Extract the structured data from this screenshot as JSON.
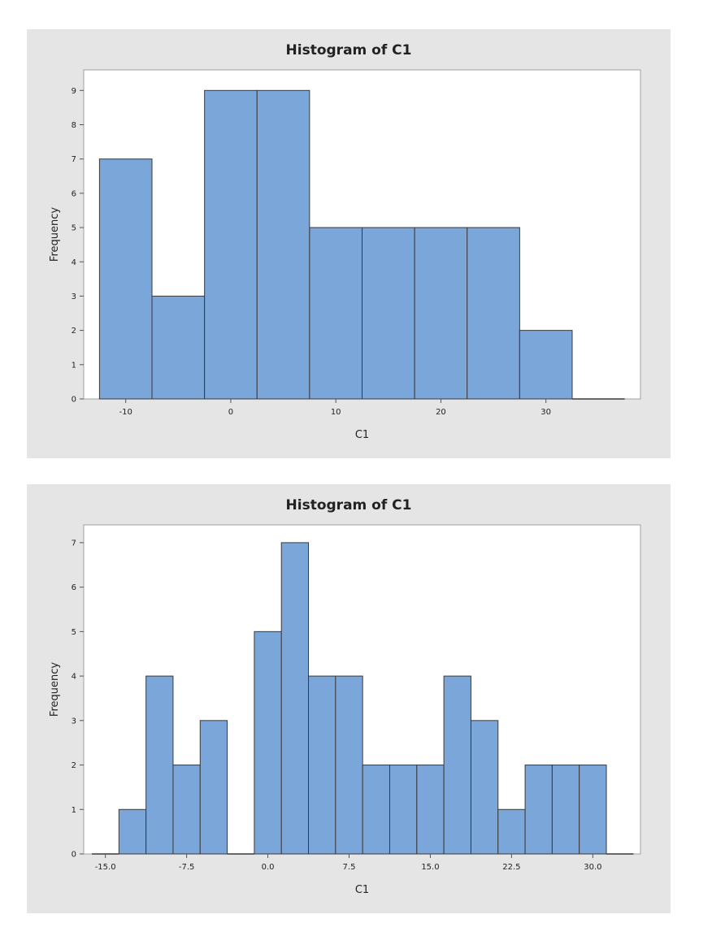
{
  "chart_data": [
    {
      "type": "bar",
      "title": "Histogram of C1",
      "xlabel": "C1",
      "ylabel": "Frequency",
      "bin_width": 5,
      "bins": [
        {
          "from": -12.5,
          "to": -7.5,
          "count": 7
        },
        {
          "from": -7.5,
          "to": -2.5,
          "count": 3
        },
        {
          "from": -2.5,
          "to": 2.5,
          "count": 9
        },
        {
          "from": 2.5,
          "to": 7.5,
          "count": 9
        },
        {
          "from": 7.5,
          "to": 12.5,
          "count": 5
        },
        {
          "from": 12.5,
          "to": 17.5,
          "count": 5
        },
        {
          "from": 17.5,
          "to": 22.5,
          "count": 5
        },
        {
          "from": 22.5,
          "to": 27.5,
          "count": 5
        },
        {
          "from": 27.5,
          "to": 32.5,
          "count": 2
        },
        {
          "from": 32.5,
          "to": 37.5,
          "count": 0
        }
      ],
      "xlim": [
        -14,
        39
      ],
      "ylim": [
        0,
        9.6
      ],
      "xticks": [
        -10,
        0,
        10,
        20,
        30
      ],
      "xtick_labels": [
        "-10",
        "0",
        "10",
        "20",
        "30"
      ],
      "yticks": [
        0,
        1,
        2,
        3,
        4,
        5,
        6,
        7,
        8,
        9
      ],
      "bar_color": "#7ba6d9",
      "edge_color": "#3a3a3a",
      "background": "#e5e5e5",
      "plot_background": "#ffffff",
      "grid": false
    },
    {
      "type": "bar",
      "title": "Histogram of C1",
      "xlabel": "C1",
      "ylabel": "Frequency",
      "bin_width": 2.5,
      "bins": [
        {
          "from": -16.25,
          "to": -13.75,
          "count": 0
        },
        {
          "from": -13.75,
          "to": -11.25,
          "count": 1
        },
        {
          "from": -11.25,
          "to": -8.75,
          "count": 4
        },
        {
          "from": -8.75,
          "to": -6.25,
          "count": 2
        },
        {
          "from": -6.25,
          "to": -3.75,
          "count": 3
        },
        {
          "from": -3.75,
          "to": -1.25,
          "count": 0
        },
        {
          "from": -1.25,
          "to": 1.25,
          "count": 5
        },
        {
          "from": 1.25,
          "to": 3.75,
          "count": 7
        },
        {
          "from": 3.75,
          "to": 6.25,
          "count": 4
        },
        {
          "from": 6.25,
          "to": 8.75,
          "count": 4
        },
        {
          "from": 8.75,
          "to": 11.25,
          "count": 2
        },
        {
          "from": 11.25,
          "to": 13.75,
          "count": 2
        },
        {
          "from": 13.75,
          "to": 16.25,
          "count": 2
        },
        {
          "from": 16.25,
          "to": 18.75,
          "count": 4
        },
        {
          "from": 18.75,
          "to": 21.25,
          "count": 3
        },
        {
          "from": 21.25,
          "to": 23.75,
          "count": 1
        },
        {
          "from": 23.75,
          "to": 26.25,
          "count": 2
        },
        {
          "from": 26.25,
          "to": 28.75,
          "count": 2
        },
        {
          "from": 28.75,
          "to": 31.25,
          "count": 2
        },
        {
          "from": 31.25,
          "to": 33.75,
          "count": 0
        }
      ],
      "xlim": [
        -17,
        34.4
      ],
      "ylim": [
        0,
        7.4
      ],
      "xticks": [
        -15,
        -7.5,
        0,
        7.5,
        15,
        22.5,
        30
      ],
      "xtick_labels": [
        "-15.0",
        "-7.5",
        "0.0",
        "7.5",
        "15.0",
        "22.5",
        "30.0"
      ],
      "yticks": [
        0,
        1,
        2,
        3,
        4,
        5,
        6,
        7
      ],
      "bar_color": "#7ba6d9",
      "edge_color": "#3a3a3a",
      "background": "#e5e5e5",
      "plot_background": "#ffffff",
      "grid": false
    }
  ]
}
